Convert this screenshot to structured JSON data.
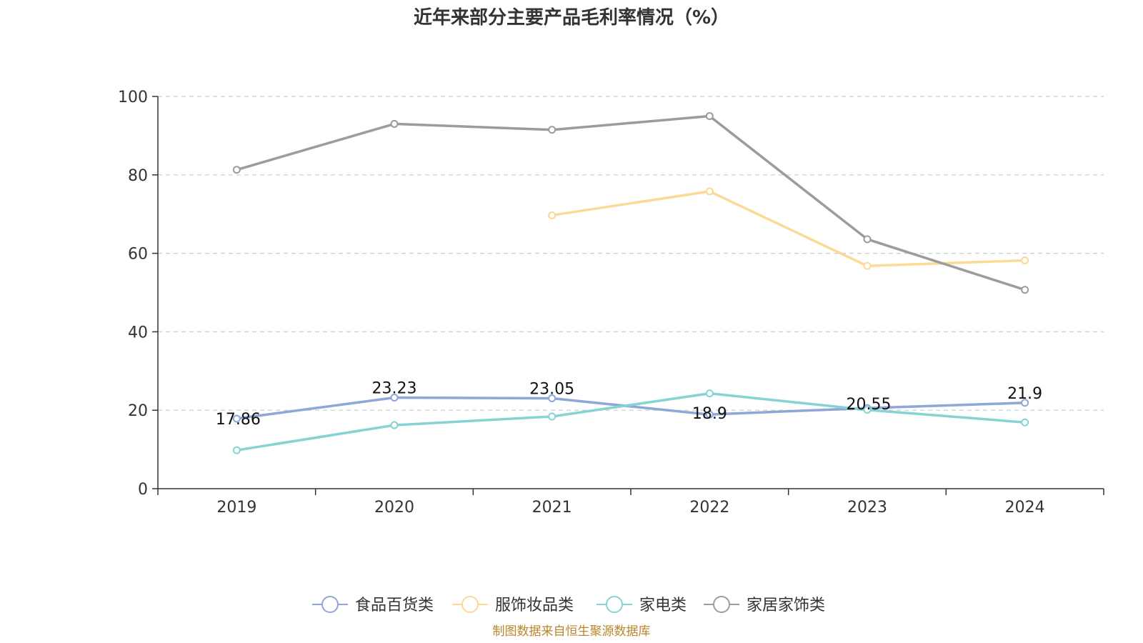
{
  "chart_data": {
    "type": "line",
    "title": "近年来部分主要产品毛利率情况（%）",
    "categories": [
      "2019",
      "2020",
      "2021",
      "2022",
      "2023",
      "2024"
    ],
    "ylim": [
      0,
      100
    ],
    "yticks": [
      0,
      20,
      40,
      60,
      80,
      100
    ],
    "grid": true,
    "legend_position": "bottom",
    "series": [
      {
        "name": "食品百货类",
        "color": "#8ea7d6",
        "values": [
          17.86,
          23.23,
          23.05,
          18.9,
          20.55,
          21.9
        ],
        "labels": [
          "17.86",
          "23.23",
          "23.05",
          "18.9",
          "20.55",
          "21.9"
        ]
      },
      {
        "name": "服饰妆品类",
        "color": "#fcd994",
        "values": [
          null,
          null,
          69.7,
          75.8,
          56.8,
          58.2
        ]
      },
      {
        "name": "家电类",
        "color": "#86d3d4",
        "values": [
          9.8,
          16.2,
          18.4,
          24.3,
          20.1,
          16.9
        ]
      },
      {
        "name": "家居家饰类",
        "color": "#9c9c9c",
        "values": [
          81.3,
          93.0,
          91.5,
          95.0,
          63.6,
          50.7
        ]
      }
    ],
    "source": "制图数据来自恒生聚源数据库"
  }
}
